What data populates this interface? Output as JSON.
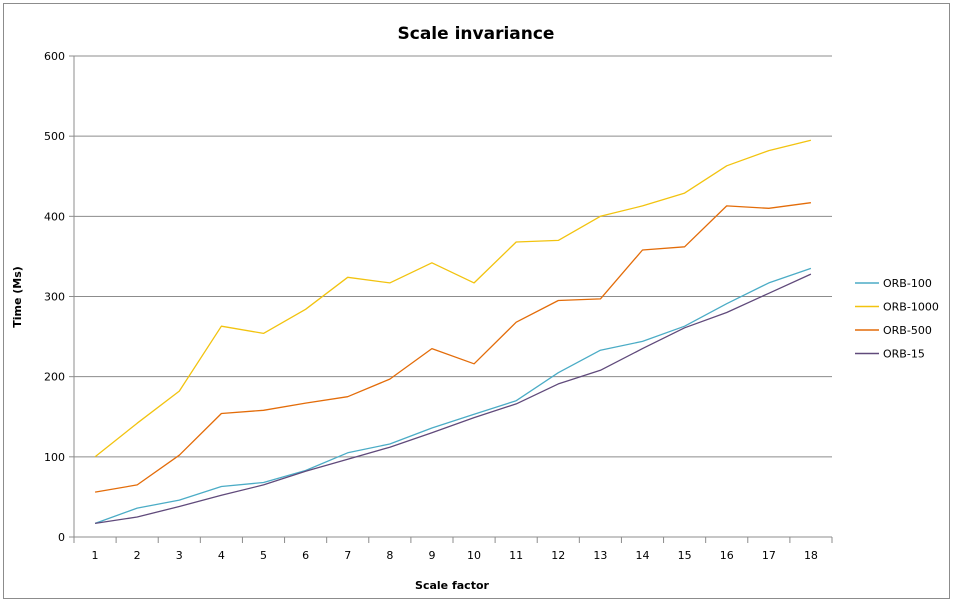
{
  "chart_data": {
    "type": "line",
    "title": "Scale invariance",
    "xlabel": "Scale factor",
    "ylabel": "Time (Ms)",
    "x": [
      1,
      2,
      3,
      4,
      5,
      6,
      7,
      8,
      9,
      10,
      11,
      12,
      13,
      14,
      15,
      16,
      17,
      18
    ],
    "ylim": [
      0,
      600
    ],
    "yticks": [
      0,
      100,
      200,
      300,
      400,
      500,
      600
    ],
    "grid": true,
    "legend_position": "right",
    "series": [
      {
        "name": "ORB-100",
        "color": "#4bacc6",
        "values": [
          17,
          36,
          46,
          63,
          68,
          83,
          105,
          116,
          136,
          153,
          170,
          205,
          233,
          244,
          263,
          291,
          317,
          335
        ]
      },
      {
        "name": "ORB-1000",
        "color": "#f2c30f",
        "values": [
          100,
          142,
          182,
          263,
          254,
          284,
          324,
          317,
          342,
          317,
          368,
          370,
          400,
          413,
          429,
          463,
          482,
          495
        ]
      },
      {
        "name": "ORB-500",
        "color": "#e36c09",
        "values": [
          56,
          65,
          102,
          154,
          158,
          167,
          175,
          197,
          235,
          216,
          268,
          295,
          297,
          358,
          362,
          413,
          410,
          417
        ]
      },
      {
        "name": "ORB-15",
        "color": "#604a7b",
        "values": [
          17,
          25,
          38,
          52,
          65,
          82,
          97,
          112,
          130,
          149,
          166,
          191,
          208,
          235,
          261,
          280,
          304,
          328
        ]
      }
    ]
  }
}
